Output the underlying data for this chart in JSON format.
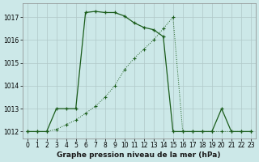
{
  "title": "Graphe pression niveau de la mer (hPa)",
  "bg_color": "#cce8e8",
  "grid_color": "#b0c8c8",
  "line_color": "#1a5c1a",
  "xlim": [
    -0.5,
    23.5
  ],
  "ylim": [
    1011.7,
    1017.6
  ],
  "yticks": [
    1012,
    1013,
    1014,
    1015,
    1016,
    1017
  ],
  "xticks": [
    0,
    1,
    2,
    3,
    4,
    5,
    6,
    7,
    8,
    9,
    10,
    11,
    12,
    13,
    14,
    15,
    16,
    17,
    18,
    19,
    20,
    21,
    22,
    23
  ],
  "s1_x": [
    0,
    1,
    2,
    3,
    4,
    5,
    6,
    7,
    8,
    9,
    10,
    11,
    12,
    13,
    14,
    15,
    16,
    17,
    18,
    19,
    20,
    21,
    22,
    23
  ],
  "s1_y": [
    1012.0,
    1012.0,
    1012.0,
    1012.1,
    1012.3,
    1012.5,
    1012.8,
    1013.1,
    1013.5,
    1014.0,
    1014.7,
    1015.2,
    1015.6,
    1016.0,
    1016.5,
    1017.0,
    1012.0,
    1012.0,
    1012.0,
    1012.0,
    1012.0,
    1012.0,
    1012.0,
    1012.0
  ],
  "s2_x": [
    0,
    1,
    2,
    3,
    4,
    5,
    6,
    7,
    8,
    9,
    10,
    11,
    12,
    13,
    14,
    15,
    16,
    17,
    18,
    19,
    20,
    21,
    22,
    23
  ],
  "s2_y": [
    1012.0,
    1012.0,
    1012.0,
    1013.0,
    1013.0,
    1013.0,
    1017.2,
    1017.25,
    1017.2,
    1017.2,
    1017.05,
    1016.75,
    1016.55,
    1016.45,
    1016.15,
    1012.0,
    1012.0,
    1012.0,
    1012.0,
    1012.0,
    1013.0,
    1012.0,
    1012.0,
    1012.0
  ],
  "title_fontsize": 6.5,
  "tick_fontsize": 5.5
}
